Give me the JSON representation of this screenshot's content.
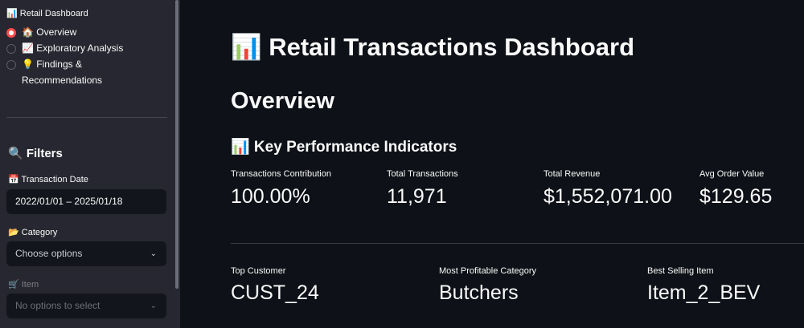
{
  "sidebar": {
    "nav_title": "📊 Retail Dashboard",
    "nav_options": [
      {
        "label": "🏠 Overview",
        "selected": true
      },
      {
        "label": "📈 Exploratory Analysis",
        "selected": false
      },
      {
        "label": "💡 Findings & Recommendations",
        "selected": false
      }
    ],
    "filters_title": "🔍 Filters",
    "filters": [
      {
        "label": "📅 Transaction Date",
        "value": "2022/01/01 – 2025/01/18"
      },
      {
        "label": "📂 Category",
        "placeholder": "Choose options"
      },
      {
        "label": "🛒 Item",
        "placeholder": "No options to select"
      }
    ]
  },
  "main": {
    "title": "📊 Retail Transactions Dashboard",
    "section": "Overview",
    "subheader": "📊 Key Performance Indicators",
    "kpis": [
      {
        "label": "Transactions Contribution",
        "value": "100.00%"
      },
      {
        "label": "Total Transactions",
        "value": "11,971"
      },
      {
        "label": "Total Revenue",
        "value": "$1,552,071.00"
      },
      {
        "label": "Avg Order Value",
        "value": "$129.65"
      }
    ],
    "highlights": [
      {
        "label": "Top Customer",
        "value": "CUST_24"
      },
      {
        "label": "Most Profitable Category",
        "value": "Butchers"
      },
      {
        "label": "Best Selling Item",
        "value": "Item_2_BEV"
      }
    ]
  }
}
